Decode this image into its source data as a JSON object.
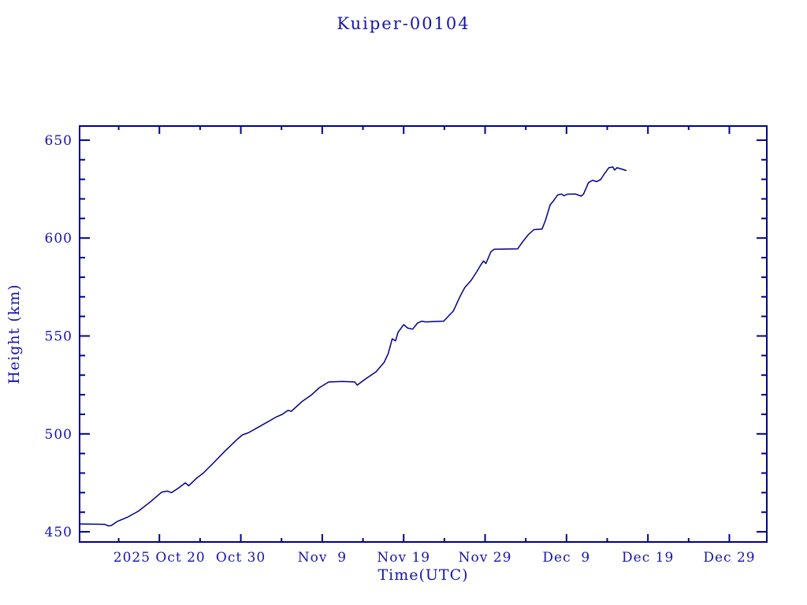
{
  "colors": {
    "line": "#00008b",
    "axis": "#00008b",
    "text": "#1515ad",
    "background": "#ffffff"
  },
  "chart_data": {
    "type": "line",
    "title": "Kuiper-00104",
    "xlabel": "Time(UTC)",
    "ylabel": "Height (km)",
    "legend": "none",
    "grid": false,
    "x_unit": "days, 0 = left edge of axis (approx 2025 Oct 10), ticks every 5 days",
    "xlim": [
      0,
      84.4
    ],
    "ylim": [
      444.8,
      657.2
    ],
    "x_major_ticks": [
      {
        "day": 9.8,
        "label": "2025 Oct 20"
      },
      {
        "day": 19.8,
        "label": "Oct 30"
      },
      {
        "day": 29.8,
        "label": "Nov  9"
      },
      {
        "day": 39.8,
        "label": "Nov 19"
      },
      {
        "day": 49.8,
        "label": "Nov 29"
      },
      {
        "day": 59.8,
        "label": "Dec  9"
      },
      {
        "day": 69.8,
        "label": "Dec 19"
      },
      {
        "day": 79.8,
        "label": "Dec 29"
      }
    ],
    "x_minor_tick_days": [
      4.8,
      14.8,
      24.8,
      34.8,
      44.8,
      54.8,
      64.8,
      74.8
    ],
    "y_major_ticks": [
      {
        "value": 450,
        "label": "450"
      },
      {
        "value": 500,
        "label": "500"
      },
      {
        "value": 550,
        "label": "550"
      },
      {
        "value": 600,
        "label": "600"
      },
      {
        "value": 650,
        "label": "650"
      }
    ],
    "y_minor_tick_values": [
      460,
      470,
      480,
      490,
      510,
      520,
      530,
      540,
      560,
      570,
      580,
      590,
      610,
      620,
      630,
      640
    ],
    "series": [
      {
        "name": "height-km",
        "points": [
          [
            0.0,
            454.0
          ],
          [
            1.8,
            453.9
          ],
          [
            3.1,
            453.8
          ],
          [
            3.5,
            453.0
          ],
          [
            3.9,
            453.2
          ],
          [
            4.6,
            455.2
          ],
          [
            5.9,
            457.5
          ],
          [
            7.2,
            460.5
          ],
          [
            8.6,
            465.0
          ],
          [
            10.1,
            470.3
          ],
          [
            10.8,
            470.8
          ],
          [
            11.3,
            470.0
          ],
          [
            12.2,
            472.5
          ],
          [
            13.0,
            475.0
          ],
          [
            13.4,
            473.5
          ],
          [
            14.4,
            477.5
          ],
          [
            15.2,
            480.0
          ],
          [
            16.4,
            485.0
          ],
          [
            17.8,
            491.0
          ],
          [
            19.3,
            497.0
          ],
          [
            20.0,
            499.5
          ],
          [
            20.7,
            500.5
          ],
          [
            22.2,
            504.0
          ],
          [
            24.1,
            508.5
          ],
          [
            24.9,
            510.0
          ],
          [
            25.6,
            512.0
          ],
          [
            26.0,
            511.5
          ],
          [
            27.3,
            516.5
          ],
          [
            28.5,
            520.0
          ],
          [
            29.4,
            523.5
          ],
          [
            30.6,
            526.5
          ],
          [
            32.3,
            526.8
          ],
          [
            33.8,
            526.5
          ],
          [
            34.1,
            524.9
          ],
          [
            35.0,
            527.7
          ],
          [
            36.4,
            531.7
          ],
          [
            37.4,
            536.5
          ],
          [
            37.9,
            541.0
          ],
          [
            38.4,
            548.6
          ],
          [
            38.8,
            547.5
          ],
          [
            39.1,
            551.8
          ],
          [
            39.8,
            555.8
          ],
          [
            40.3,
            554.0
          ],
          [
            40.9,
            553.5
          ],
          [
            41.5,
            556.6
          ],
          [
            42.0,
            557.5
          ],
          [
            42.5,
            557.2
          ],
          [
            43.7,
            557.4
          ],
          [
            44.7,
            557.5
          ],
          [
            45.0,
            558.8
          ],
          [
            45.4,
            560.6
          ],
          [
            45.9,
            562.7
          ],
          [
            46.7,
            570.0
          ],
          [
            47.3,
            574.7
          ],
          [
            48.1,
            578.5
          ],
          [
            48.8,
            583.0
          ],
          [
            49.3,
            586.5
          ],
          [
            49.6,
            588.3
          ],
          [
            49.9,
            587.0
          ],
          [
            50.5,
            592.9
          ],
          [
            50.9,
            594.3
          ],
          [
            53.8,
            594.5
          ],
          [
            54.4,
            598.0
          ],
          [
            55.1,
            601.7
          ],
          [
            55.8,
            604.3
          ],
          [
            56.8,
            604.6
          ],
          [
            57.2,
            608.9
          ],
          [
            57.5,
            613.0
          ],
          [
            57.8,
            617.0
          ],
          [
            58.2,
            619.0
          ],
          [
            58.7,
            622.0
          ],
          [
            59.2,
            622.5
          ],
          [
            59.5,
            621.6
          ],
          [
            59.9,
            622.4
          ],
          [
            60.9,
            622.5
          ],
          [
            61.6,
            621.4
          ],
          [
            61.9,
            622.5
          ],
          [
            62.5,
            628.3
          ],
          [
            63.0,
            629.5
          ],
          [
            63.5,
            628.8
          ],
          [
            64.0,
            629.9
          ],
          [
            64.5,
            633.1
          ],
          [
            65.0,
            635.9
          ],
          [
            65.5,
            636.3
          ],
          [
            65.7,
            634.7
          ],
          [
            66.0,
            635.9
          ],
          [
            66.5,
            635.3
          ],
          [
            67.1,
            634.5
          ]
        ]
      }
    ]
  }
}
